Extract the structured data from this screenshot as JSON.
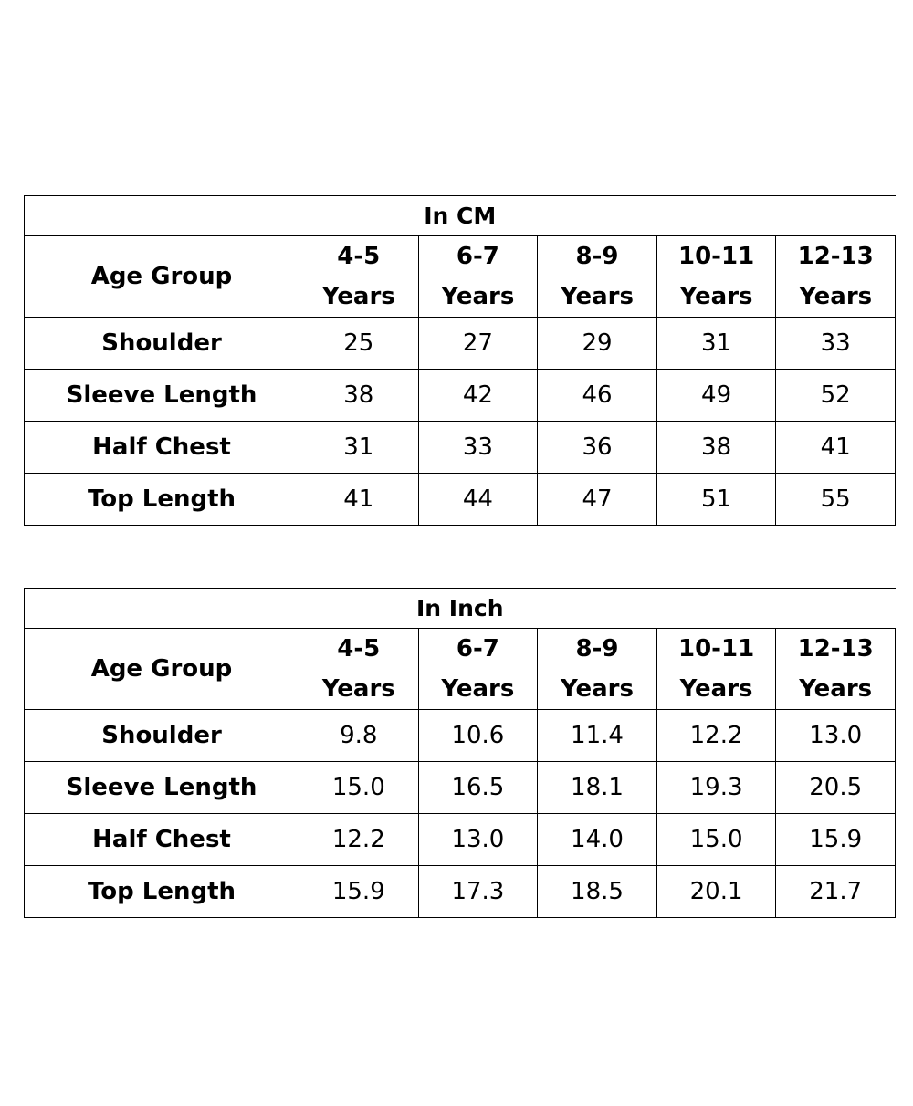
{
  "tables": [
    {
      "title": "In CM",
      "header_label": "Age Group",
      "columns": [
        {
          "range": "4-5",
          "unit": "Years"
        },
        {
          "range": "6-7",
          "unit": "Years"
        },
        {
          "range": "8-9",
          "unit": "Years"
        },
        {
          "range": "10-11",
          "unit": "Years"
        },
        {
          "range": "12-13",
          "unit": "Years"
        }
      ],
      "rows": [
        {
          "label": "Shoulder",
          "values": [
            "25",
            "27",
            "29",
            "31",
            "33"
          ]
        },
        {
          "label": "Sleeve Length",
          "values": [
            "38",
            "42",
            "46",
            "49",
            "52"
          ]
        },
        {
          "label": "Half Chest",
          "values": [
            "31",
            "33",
            "36",
            "38",
            "41"
          ]
        },
        {
          "label": "Top Length",
          "values": [
            "41",
            "44",
            "47",
            "51",
            "55"
          ]
        }
      ]
    },
    {
      "title": "In Inch",
      "header_label": "Age Group",
      "columns": [
        {
          "range": "4-5",
          "unit": "Years"
        },
        {
          "range": "6-7",
          "unit": "Years"
        },
        {
          "range": "8-9",
          "unit": "Years"
        },
        {
          "range": "10-11",
          "unit": "Years"
        },
        {
          "range": "12-13",
          "unit": "Years"
        }
      ],
      "rows": [
        {
          "label": "Shoulder",
          "values": [
            "9.8",
            "10.6",
            "11.4",
            "12.2",
            "13.0"
          ]
        },
        {
          "label": "Sleeve Length",
          "values": [
            "15.0",
            "16.5",
            "18.1",
            "19.3",
            "20.5"
          ]
        },
        {
          "label": "Half Chest",
          "values": [
            "12.2",
            "13.0",
            "14.0",
            "15.0",
            "15.9"
          ]
        },
        {
          "label": "Top Length",
          "values": [
            "15.9",
            "17.3",
            "18.5",
            "20.1",
            "21.7"
          ]
        }
      ]
    }
  ]
}
